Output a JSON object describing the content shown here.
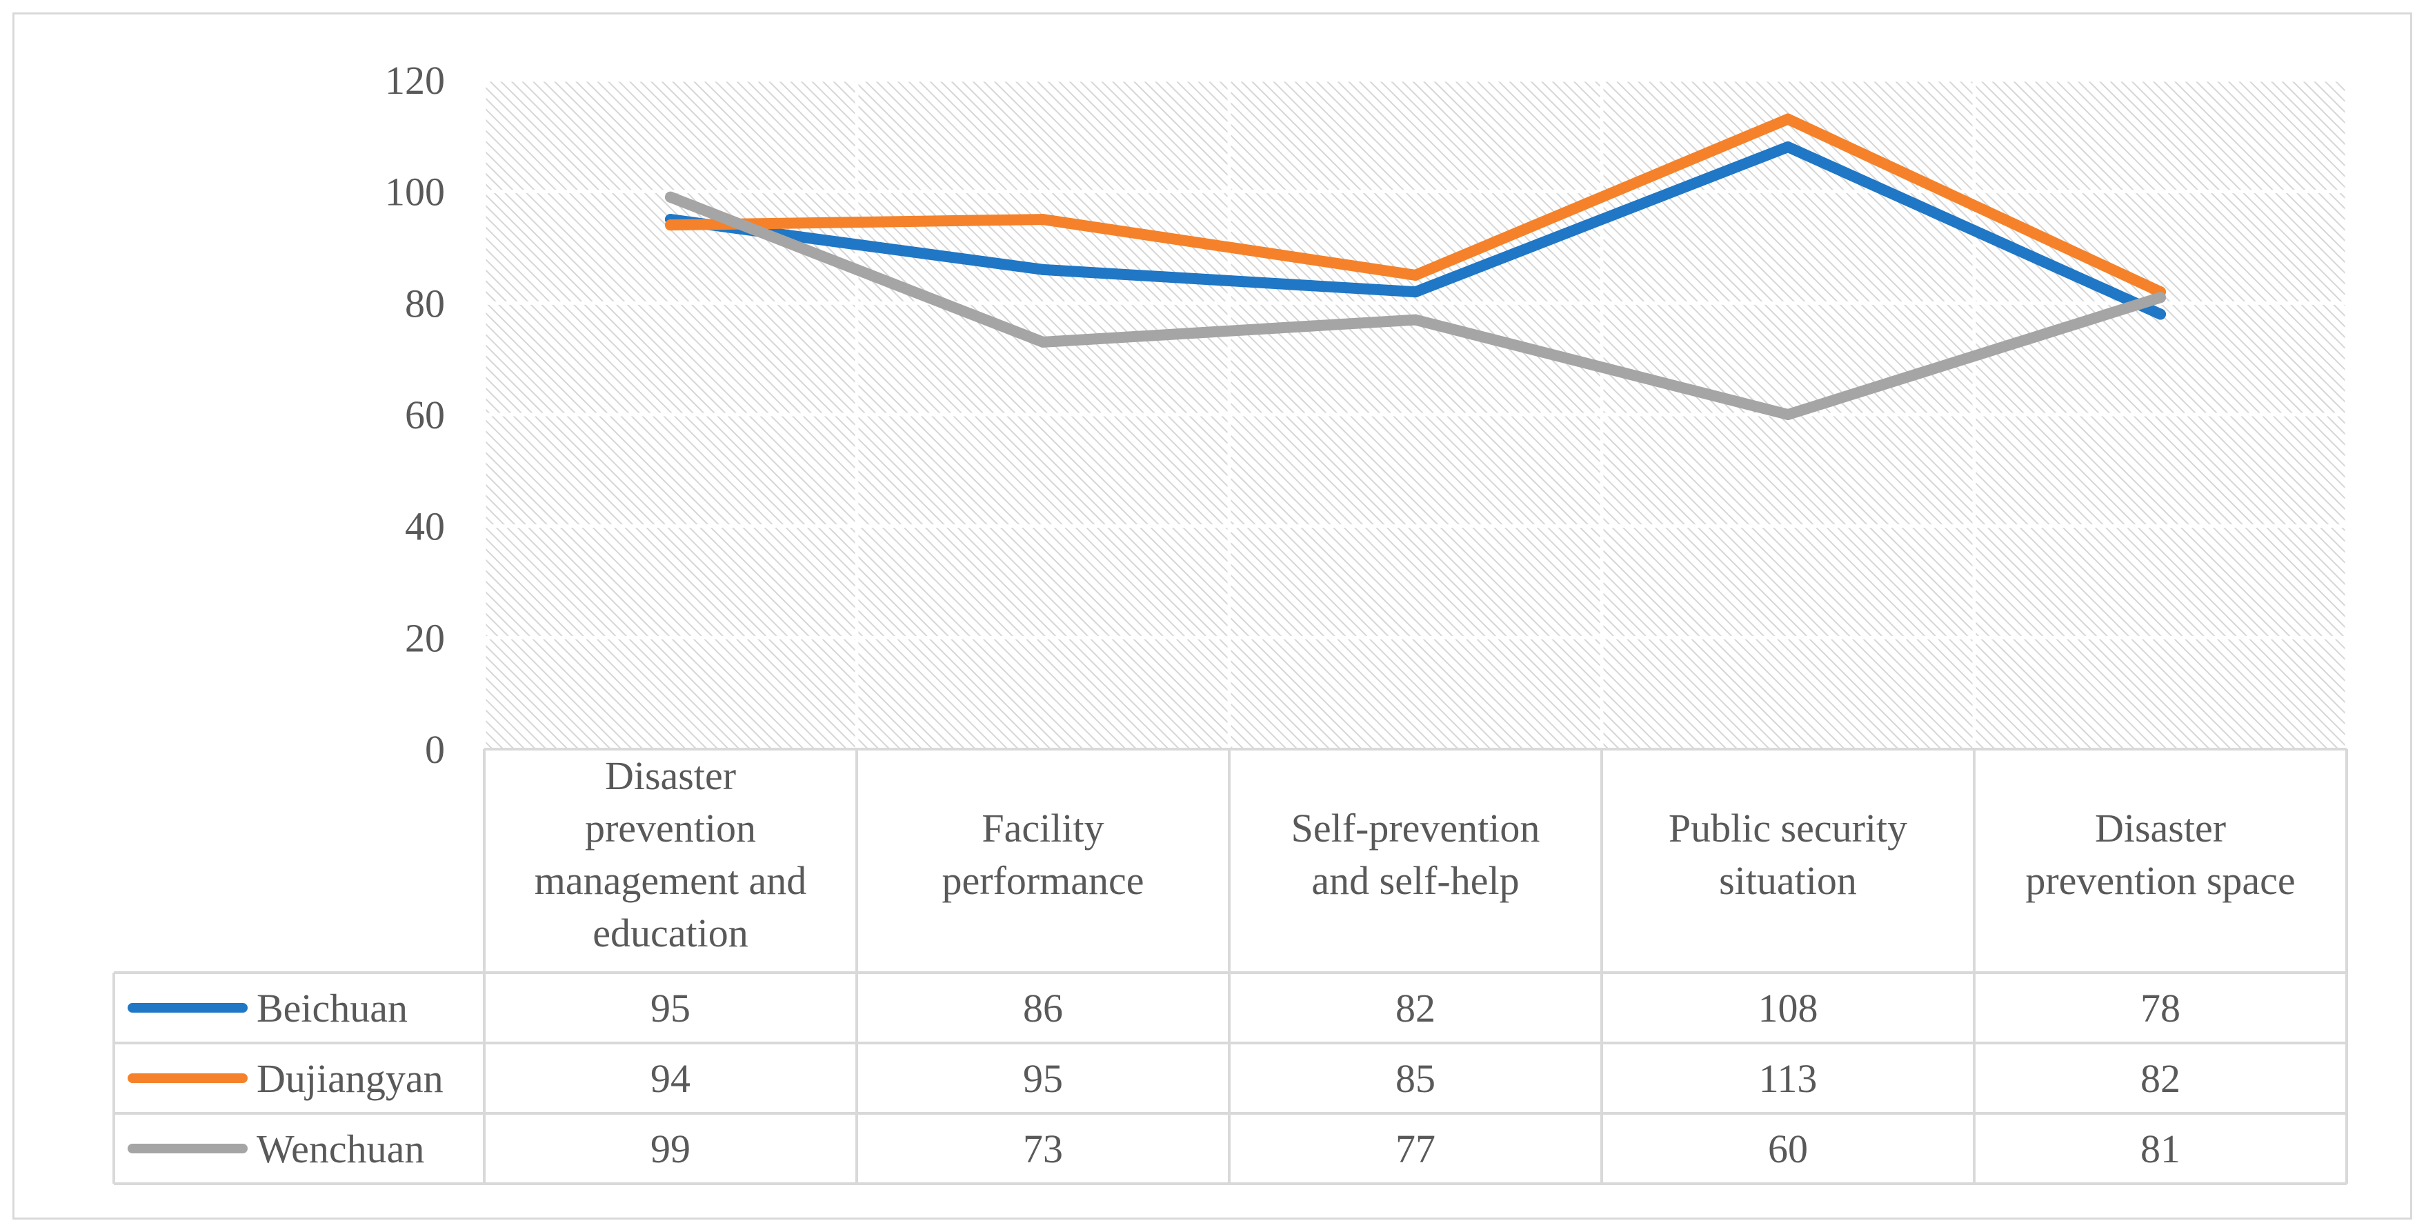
{
  "chart_data": {
    "type": "line",
    "title": "",
    "xlabel": "",
    "ylabel": "",
    "ylim": [
      0,
      120
    ],
    "y_ticks": [
      0,
      20,
      40,
      60,
      80,
      100,
      120
    ],
    "grid": true,
    "legend": "data-table-left",
    "categories": [
      [
        "Disaster",
        "prevention",
        "management and",
        "education"
      ],
      [
        "Facility",
        "performance"
      ],
      [
        "Self-prevention",
        "and self-help"
      ],
      [
        "Public security",
        "situation"
      ],
      [
        "Disaster",
        "prevention space"
      ]
    ],
    "series": [
      {
        "name": "Beichuan",
        "color": "#1f77c6",
        "values": [
          95,
          86,
          82,
          108,
          78
        ]
      },
      {
        "name": "Dujiangyan",
        "color": "#f5822a",
        "values": [
          94,
          95,
          85,
          113,
          82
        ]
      },
      {
        "name": "Wenchuan",
        "color": "#a5a5a5",
        "values": [
          99,
          73,
          77,
          60,
          81
        ]
      }
    ]
  }
}
